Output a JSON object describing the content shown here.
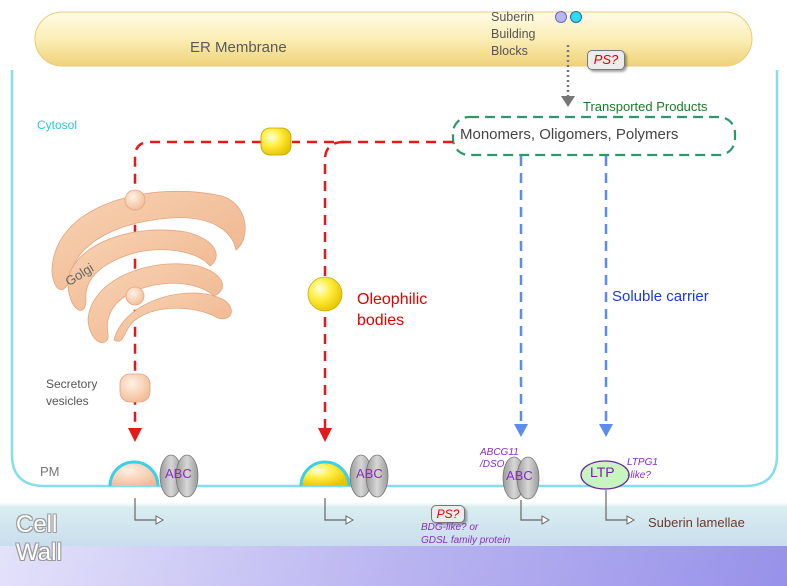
{
  "labels": {
    "er_membrane": "ER Membrane",
    "suberin_line1": "Suberin",
    "suberin_line2": "Building",
    "suberin_line3": "Blocks",
    "ps_top": "PS?",
    "transported_products": "Transported Products",
    "monomers_oligomers_polymers": "Monomers, Oligomers, Polymers",
    "cytosol": "Cytosol",
    "golgi": "Golgi",
    "secretory_line1": "Secretory",
    "secretory_line2": "vesicles",
    "oleophilic_line1": "Oleophilic",
    "oleophilic_line2": "bodies",
    "soluble_carrier": "Soluble carrier",
    "pm": "PM",
    "abc": "ABC",
    "abcg11_line1": "ABCG11",
    "abcg11_line2": "/DSO",
    "ltp": "LTP",
    "ltpg1_line1": "LTPG1",
    "ltpg1_line2": "-like?",
    "ps_bottom": "PS?",
    "bdg_line1": "BDG-like? or",
    "bdg_line2": "GDSL family protein",
    "suberin_lamellae": "Suberin lamellae",
    "cell": "Cell",
    "wall": "Wall"
  },
  "colors": {
    "er_membrane": "#fbe9a6",
    "cell_outline": "#7fdcec",
    "secretory_pathway_arrow": "#e41a1a",
    "soluble_pathway_arrow": "#5b8def",
    "products_box_border": "#2a9a6a",
    "ps_text": "#e00000",
    "oleophilic_body": "#ffe21f",
    "golgi": "#f3c39e",
    "abc_transporter": "#bdbdbd",
    "ltp_fill": "#c8f4c0",
    "protein_label": "#8a2bc8",
    "cell_wall_band": "#d8eef0",
    "cell_wall_bottom": "#a9a3ee"
  }
}
